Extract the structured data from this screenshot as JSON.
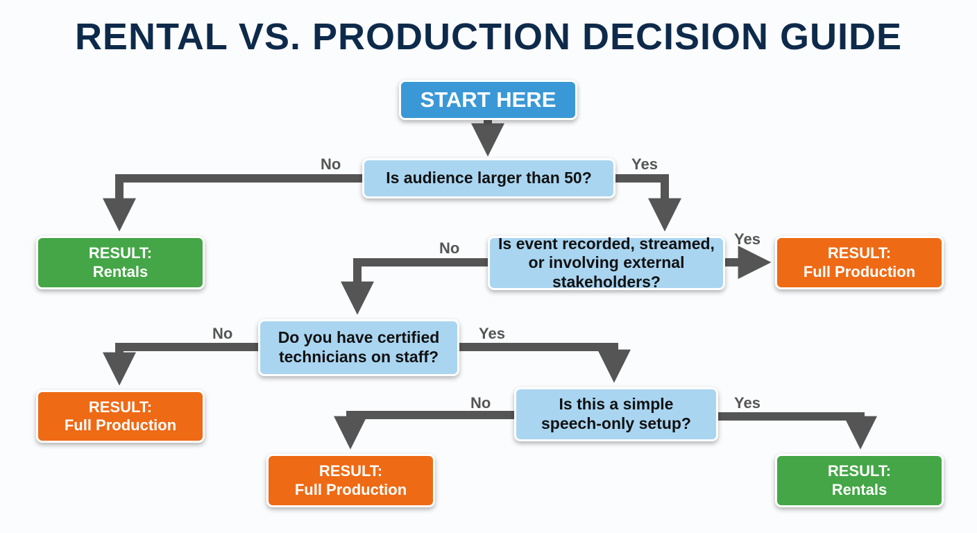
{
  "title": "RENTAL VS. PRODUCTION DECISION GUIDE",
  "start": "START HERE",
  "questions": [
    {
      "text": "Is audience larger than 50?",
      "no": "No",
      "yes": "Yes"
    },
    {
      "text": "Is event recorded, streamed, or involving external stakeholders?",
      "no": "No",
      "yes": "Yes"
    },
    {
      "text": "Do you have certified technicians on staff?",
      "no": "No",
      "yes": "Yes"
    },
    {
      "text": "Is this a simple speech-only setup?",
      "no": "No",
      "yes": "Yes"
    }
  ],
  "results": [
    {
      "label": "RESULT:",
      "value": "Rentals",
      "color": "#44a646"
    },
    {
      "label": "RESULT:",
      "value": "Full Production",
      "color": "#ee6a15"
    },
    {
      "label": "RESULT:",
      "value": "Full Production",
      "color": "#ee6a15"
    },
    {
      "label": "RESULT:",
      "value": "Full Production",
      "color": "#ee6a15"
    },
    {
      "label": "RESULT:",
      "value": "Rentals",
      "color": "#44a646"
    }
  ],
  "colors": {
    "start": "#3b98d6",
    "question": "#a9d5f1",
    "arrow": "#555555",
    "title": "#0e2a4b"
  }
}
